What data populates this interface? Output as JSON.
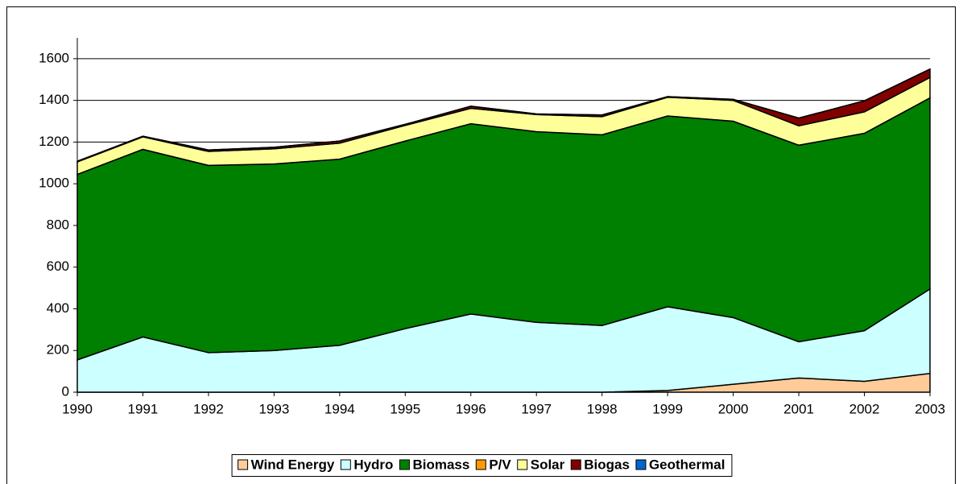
{
  "chart_data": {
    "type": "stacked_area",
    "categories": [
      "1990",
      "1991",
      "1992",
      "1993",
      "1994",
      "1995",
      "1996",
      "1997",
      "1998",
      "1999",
      "2000",
      "2001",
      "2002",
      "2003"
    ],
    "series": [
      {
        "name": "Wind Energy",
        "color": "#FFCC99",
        "values": [
          0,
          0,
          0,
          0,
          0,
          0,
          0,
          0,
          0,
          8,
          38,
          68,
          52,
          90
        ]
      },
      {
        "name": "Hydro",
        "color": "#CCFFFF",
        "values": [
          155,
          265,
          190,
          200,
          225,
          305,
          375,
          335,
          320,
          402,
          320,
          174,
          243,
          405
        ]
      },
      {
        "name": "Biomass",
        "color": "#008000",
        "values": [
          890,
          900,
          898,
          895,
          893,
          900,
          913,
          915,
          915,
          915,
          942,
          943,
          947,
          917
        ]
      },
      {
        "name": "P/V",
        "color": "#FF9900",
        "values": [
          0,
          0,
          0,
          0,
          0,
          0,
          0,
          0,
          0,
          0,
          0,
          0,
          0,
          0
        ]
      },
      {
        "name": "Solar",
        "color": "#FFFF99",
        "values": [
          60,
          60,
          67,
          73,
          77,
          75,
          74,
          82,
          87,
          90,
          100,
          93,
          103,
          98
        ]
      },
      {
        "name": "Biogas",
        "color": "#800000",
        "values": [
          3,
          3,
          7,
          7,
          10,
          5,
          10,
          3,
          8,
          3,
          5,
          37,
          53,
          40
        ]
      },
      {
        "name": "Geothermal",
        "color": "#0066CC",
        "values": [
          0,
          0,
          0,
          0,
          0,
          0,
          0,
          0,
          0,
          0,
          0,
          0,
          0,
          0
        ]
      }
    ],
    "ylim": [
      0,
      1700
    ],
    "yticks": [
      0,
      200,
      400,
      600,
      800,
      1000,
      1200,
      1400,
      1600
    ],
    "grid": true,
    "legend": "bottom"
  }
}
